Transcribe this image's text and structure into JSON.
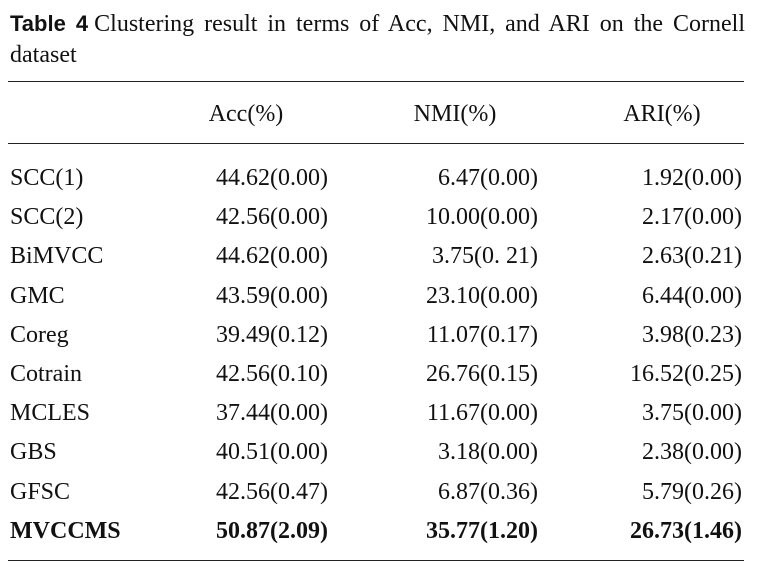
{
  "caption": {
    "label": "Table 4",
    "text": "Clustering result in terms of Acc, NMI, and ARI on the Cornell dataset"
  },
  "table": {
    "columns": [
      "Acc(%)",
      "NMI(%)",
      "ARI(%)"
    ],
    "rows": [
      [
        "SCC(1)",
        "44.62(0.00)",
        "6.47(0.00)",
        "1.92(0.00)"
      ],
      [
        "SCC(2)",
        "42.56(0.00)",
        "10.00(0.00)",
        "2.17(0.00)"
      ],
      [
        "BiMVCC",
        "44.62(0.00)",
        "3.75(0. 21)",
        "2.63(0.21)"
      ],
      [
        "GMC",
        "43.59(0.00)",
        "23.10(0.00)",
        "6.44(0.00)"
      ],
      [
        "Coreg",
        "39.49(0.12)",
        "11.07(0.17)",
        "3.98(0.23)"
      ],
      [
        "Cotrain",
        "42.56(0.10)",
        "26.76(0.15)",
        "16.52(0.25)"
      ],
      [
        "MCLES",
        "37.44(0.00)",
        "11.67(0.00)",
        "3.75(0.00)"
      ],
      [
        "GBS",
        "40.51(0.00)",
        "3.18(0.00)",
        "2.38(0.00)"
      ],
      [
        "GFSC",
        "42.56(0.47)",
        "6.87(0.36)",
        "5.79(0.26)"
      ],
      [
        "MVCCMS",
        "50.87(2.09)",
        "35.77(1.20)",
        "26.73(1.46)"
      ]
    ]
  }
}
